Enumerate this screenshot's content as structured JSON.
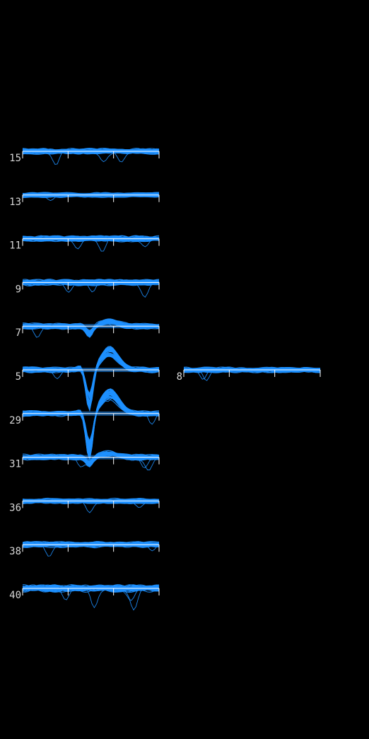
{
  "chart_data": {
    "type": "line",
    "series_color": "#1e90ff",
    "axis_color": "#ffffff",
    "label_color": "#d8d8d8",
    "background": "#000000",
    "grid": false,
    "legend": "none",
    "x_ticks": 4,
    "columns": [
      {
        "channels": [
          {
            "label": "15",
            "shape": "noise",
            "spike_depth": 0,
            "noise": 1.0,
            "outliers": 3
          },
          {
            "label": "13",
            "shape": "noise",
            "spike_depth": 0,
            "noise": 0.7,
            "outliers": 1
          },
          {
            "label": "11",
            "shape": "noise",
            "spike_depth": 0,
            "noise": 1.0,
            "outliers": 3
          },
          {
            "label": "9",
            "shape": "noise",
            "spike_depth": 0,
            "noise": 1.1,
            "outliers": 3
          },
          {
            "label": "7",
            "shape": "spike",
            "spike_depth": 0.25,
            "noise": 1.0,
            "outliers": 2
          },
          {
            "label": "5",
            "shape": "spike",
            "spike_depth": 1.0,
            "noise": 0.9,
            "outliers": 2
          },
          {
            "label": "29",
            "shape": "spike",
            "spike_depth": 1.1,
            "noise": 0.9,
            "outliers": 2
          },
          {
            "label": "31",
            "shape": "spike",
            "spike_depth": 0.2,
            "noise": 1.0,
            "outliers": 3
          },
          {
            "label": "36",
            "shape": "noise",
            "spike_depth": 0,
            "noise": 0.8,
            "outliers": 2
          },
          {
            "label": "38",
            "shape": "noise",
            "spike_depth": 0,
            "noise": 1.0,
            "outliers": 2
          },
          {
            "label": "40",
            "shape": "noise",
            "spike_depth": 0,
            "noise": 1.3,
            "outliers": 4
          }
        ]
      },
      {
        "channels": [
          {
            "label": "8",
            "shape": "noise",
            "spike_depth": 0,
            "noise": 0.9,
            "outliers": 2
          }
        ]
      }
    ]
  }
}
